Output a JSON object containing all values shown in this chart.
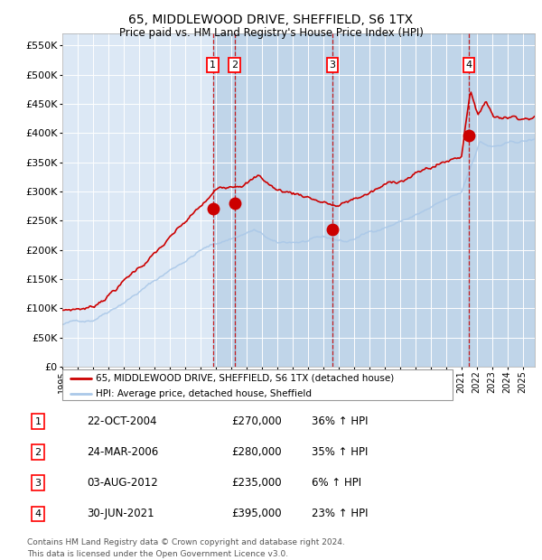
{
  "title": "65, MIDDLEWOOD DRIVE, SHEFFIELD, S6 1TX",
  "subtitle": "Price paid vs. HM Land Registry's House Price Index (HPI)",
  "legend_line1": "65, MIDDLEWOOD DRIVE, SHEFFIELD, S6 1TX (detached house)",
  "legend_line2": "HPI: Average price, detached house, Sheffield",
  "footer1": "Contains HM Land Registry data © Crown copyright and database right 2024.",
  "footer2": "This data is licensed under the Open Government Licence v3.0.",
  "transactions": [
    {
      "num": 1,
      "date": "22-OCT-2004",
      "price": 270000,
      "pct": "36%",
      "dir": "↑",
      "year_x": 2004.81
    },
    {
      "num": 2,
      "date": "24-MAR-2006",
      "price": 280000,
      "pct": "35%",
      "dir": "↑",
      "year_x": 2006.23
    },
    {
      "num": 3,
      "date": "03-AUG-2012",
      "price": 235000,
      "pct": "6%",
      "dir": "↑",
      "year_x": 2012.59
    },
    {
      "num": 4,
      "date": "30-JUN-2021",
      "price": 395000,
      "pct": "23%",
      "dir": "↑",
      "year_x": 2021.5
    }
  ],
  "hpi_color": "#aac8e8",
  "price_color": "#cc0000",
  "marker_color": "#cc0000",
  "vline_color": "#cc0000",
  "bg_color": "#dce8f5",
  "grid_color": "#ffffff",
  "ylim": [
    0,
    570000
  ],
  "xlim_start": 1995,
  "xlim_end": 2025.8,
  "yticks": [
    0,
    50000,
    100000,
    150000,
    200000,
    250000,
    300000,
    350000,
    400000,
    450000,
    500000,
    550000
  ]
}
